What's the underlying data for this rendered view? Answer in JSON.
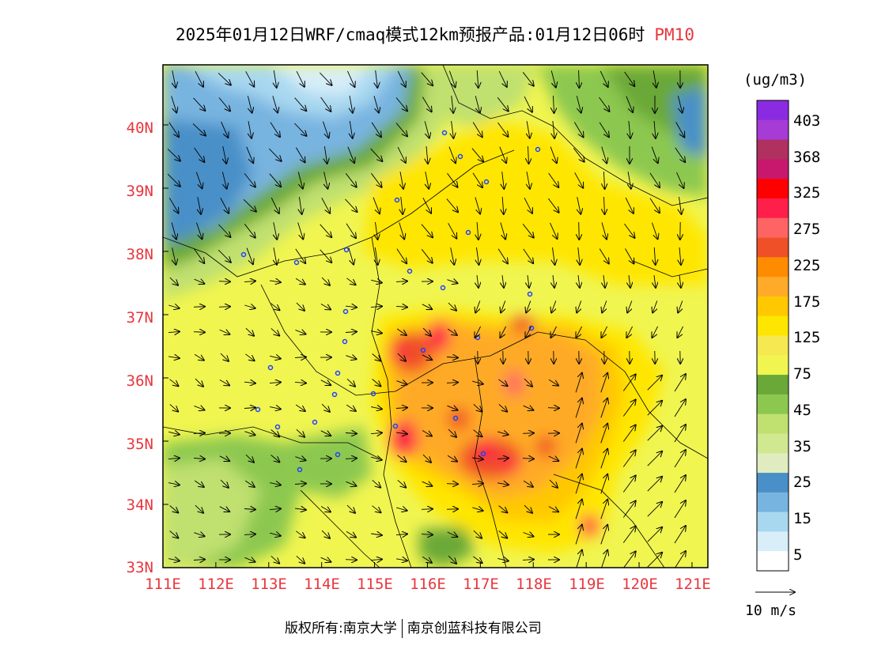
{
  "title": {
    "main": "2025年01月12日WRF/cmaq模式12km预报产品:01月12日06时",
    "variable": "PM10"
  },
  "map": {
    "lat_labels": [
      "40N",
      "39N",
      "38N",
      "37N",
      "36N",
      "35N",
      "34N",
      "33N"
    ],
    "lon_labels": [
      "111E",
      "112E",
      "113E",
      "114E",
      "115E",
      "116E",
      "117E",
      "118E",
      "119E",
      "120E",
      "121E"
    ],
    "lon_range": [
      111,
      121.3
    ],
    "lat_range": [
      33,
      40.95
    ]
  },
  "colorbar": {
    "unit": "(ug/m3)",
    "labels": [
      "403",
      "368",
      "325",
      "275",
      "225",
      "175",
      "125",
      "75",
      "45",
      "35",
      "25",
      "15",
      "5"
    ],
    "colors_top_to_bottom": [
      "#8a2be2",
      "#a63bd6",
      "#b03060",
      "#c8186e",
      "#ff0000",
      "#ff1f4a",
      "#ff6464",
      "#f05028",
      "#ff8c00",
      "#ffaa28",
      "#ffc800",
      "#ffe600",
      "#f5e850",
      "#f0f550",
      "#6aa838",
      "#8cc850",
      "#c0e070",
      "#d0e890",
      "#e0ecc0",
      "#4a90c8",
      "#78b4e0",
      "#a8d8f0",
      "#d8eef8",
      "#ffffff"
    ]
  },
  "wind_reference": {
    "label": "10 m/s"
  },
  "footer": {
    "left": "版权所有:南京大学",
    "right": "南京创蓝科技有限公司"
  }
}
